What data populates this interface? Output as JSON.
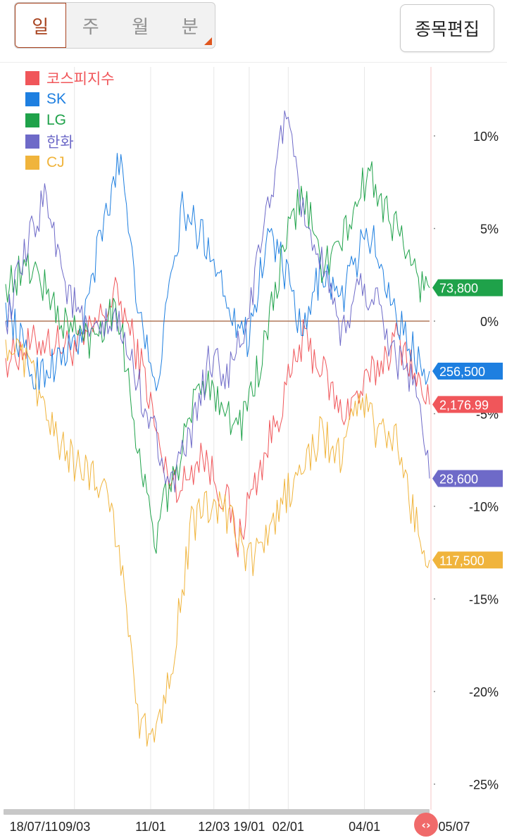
{
  "period_tabs": [
    {
      "label": "일",
      "active": true
    },
    {
      "label": "주",
      "active": false
    },
    {
      "label": "월",
      "active": false
    },
    {
      "label": "분",
      "active": false
    }
  ],
  "edit_button": "종목편집",
  "legend": [
    {
      "label": "코스피지수",
      "color": "#f0565a"
    },
    {
      "label": "SK",
      "color": "#1e7fe0"
    },
    {
      "label": "LG",
      "color": "#1fa24a"
    },
    {
      "label": "한화",
      "color": "#6e6ac8"
    },
    {
      "label": "CJ",
      "color": "#f0b43c"
    }
  ],
  "chart_data": {
    "type": "line",
    "y_unit": "%",
    "ylim": [
      -25,
      12
    ],
    "y_ticks": [
      "10%",
      "5%",
      "0%",
      "-5%",
      "-10%",
      "-15%",
      "-20%",
      "-25%"
    ],
    "y_tick_values": [
      10,
      5,
      0,
      -5,
      -10,
      -15,
      -20,
      -25
    ],
    "x_tick_labels": [
      "18/07/11",
      "09/03",
      "11/01",
      "12/03",
      "19/01",
      "02/01",
      "04/01",
      "05/07"
    ],
    "x_tick_indices": [
      0,
      37,
      78,
      112,
      131,
      152,
      193,
      228
    ],
    "n_points": 228,
    "series": [
      {
        "name": "코스피지수",
        "color": "#f0565a",
        "last_label": "2,176.99",
        "last_value": -4.5,
        "keys": [
          [
            0,
            -2
          ],
          [
            20,
            -1
          ],
          [
            40,
            -1.5
          ],
          [
            60,
            1.5
          ],
          [
            75,
            -3
          ],
          [
            85,
            -8
          ],
          [
            95,
            -9
          ],
          [
            105,
            -7
          ],
          [
            115,
            -9
          ],
          [
            120,
            -10
          ],
          [
            125,
            -12
          ],
          [
            130,
            -10
          ],
          [
            140,
            -7
          ],
          [
            150,
            -4
          ],
          [
            160,
            -1
          ],
          [
            170,
            -2.5
          ],
          [
            180,
            -5
          ],
          [
            190,
            -4
          ],
          [
            200,
            -2.5
          ],
          [
            210,
            -1
          ],
          [
            215,
            -1.5
          ],
          [
            222,
            -3.5
          ],
          [
            228,
            -4.5
          ]
        ]
      },
      {
        "name": "SK",
        "color": "#1e7fe0",
        "last_label": "256,500",
        "last_value": -2.7,
        "keys": [
          [
            0,
            1
          ],
          [
            15,
            -3
          ],
          [
            30,
            -2
          ],
          [
            40,
            -1
          ],
          [
            50,
            4
          ],
          [
            62,
            9
          ],
          [
            70,
            2
          ],
          [
            80,
            -4
          ],
          [
            95,
            6
          ],
          [
            110,
            4
          ],
          [
            120,
            1
          ],
          [
            130,
            -1
          ],
          [
            142,
            5
          ],
          [
            152,
            2
          ],
          [
            160,
            -1
          ],
          [
            170,
            3
          ],
          [
            180,
            1
          ],
          [
            195,
            5
          ],
          [
            205,
            2
          ],
          [
            215,
            -1
          ],
          [
            228,
            -2.7
          ]
        ]
      },
      {
        "name": "LG",
        "color": "#1fa24a",
        "last_label": "73,800",
        "last_value": 1.8,
        "keys": [
          [
            0,
            2
          ],
          [
            15,
            3
          ],
          [
            30,
            0
          ],
          [
            45,
            -1
          ],
          [
            60,
            1
          ],
          [
            70,
            -6
          ],
          [
            80,
            -12
          ],
          [
            88,
            -9
          ],
          [
            95,
            -7
          ],
          [
            105,
            -3
          ],
          [
            115,
            -4
          ],
          [
            125,
            -6
          ],
          [
            138,
            -2
          ],
          [
            150,
            4
          ],
          [
            160,
            7
          ],
          [
            170,
            3
          ],
          [
            180,
            4
          ],
          [
            195,
            8
          ],
          [
            205,
            6
          ],
          [
            215,
            4
          ],
          [
            222,
            2
          ],
          [
            228,
            1.8
          ]
        ]
      },
      {
        "name": "한화",
        "color": "#6e6ac8",
        "last_label": "28,600",
        "last_value": -8.5,
        "keys": [
          [
            0,
            0
          ],
          [
            12,
            4
          ],
          [
            22,
            7
          ],
          [
            32,
            2
          ],
          [
            45,
            -1
          ],
          [
            60,
            0
          ],
          [
            70,
            -3
          ],
          [
            80,
            -6
          ],
          [
            90,
            -9
          ],
          [
            100,
            -6
          ],
          [
            110,
            -2
          ],
          [
            120,
            -3
          ],
          [
            130,
            0
          ],
          [
            150,
            11
          ],
          [
            160,
            6
          ],
          [
            170,
            3
          ],
          [
            180,
            -1
          ],
          [
            190,
            2
          ],
          [
            200,
            1
          ],
          [
            210,
            -2
          ],
          [
            220,
            -3
          ],
          [
            228,
            -8.5
          ]
        ]
      },
      {
        "name": "CJ",
        "color": "#f0b43c",
        "last_label": "117,500",
        "last_value": -12.9,
        "keys": [
          [
            0,
            -1
          ],
          [
            15,
            -3
          ],
          [
            25,
            -6
          ],
          [
            40,
            -8
          ],
          [
            50,
            -8.5
          ],
          [
            55,
            -9
          ],
          [
            65,
            -15
          ],
          [
            72,
            -22
          ],
          [
            80,
            -22.5
          ],
          [
            90,
            -18
          ],
          [
            100,
            -11
          ],
          [
            110,
            -10
          ],
          [
            120,
            -10.5
          ],
          [
            130,
            -13
          ],
          [
            140,
            -12
          ],
          [
            150,
            -9.5
          ],
          [
            160,
            -8
          ],
          [
            170,
            -6
          ],
          [
            180,
            -7.5
          ],
          [
            190,
            -4
          ],
          [
            200,
            -6
          ],
          [
            210,
            -6.5
          ],
          [
            216,
            -9
          ],
          [
            222,
            -11.5
          ],
          [
            228,
            -12.9
          ]
        ]
      }
    ]
  }
}
